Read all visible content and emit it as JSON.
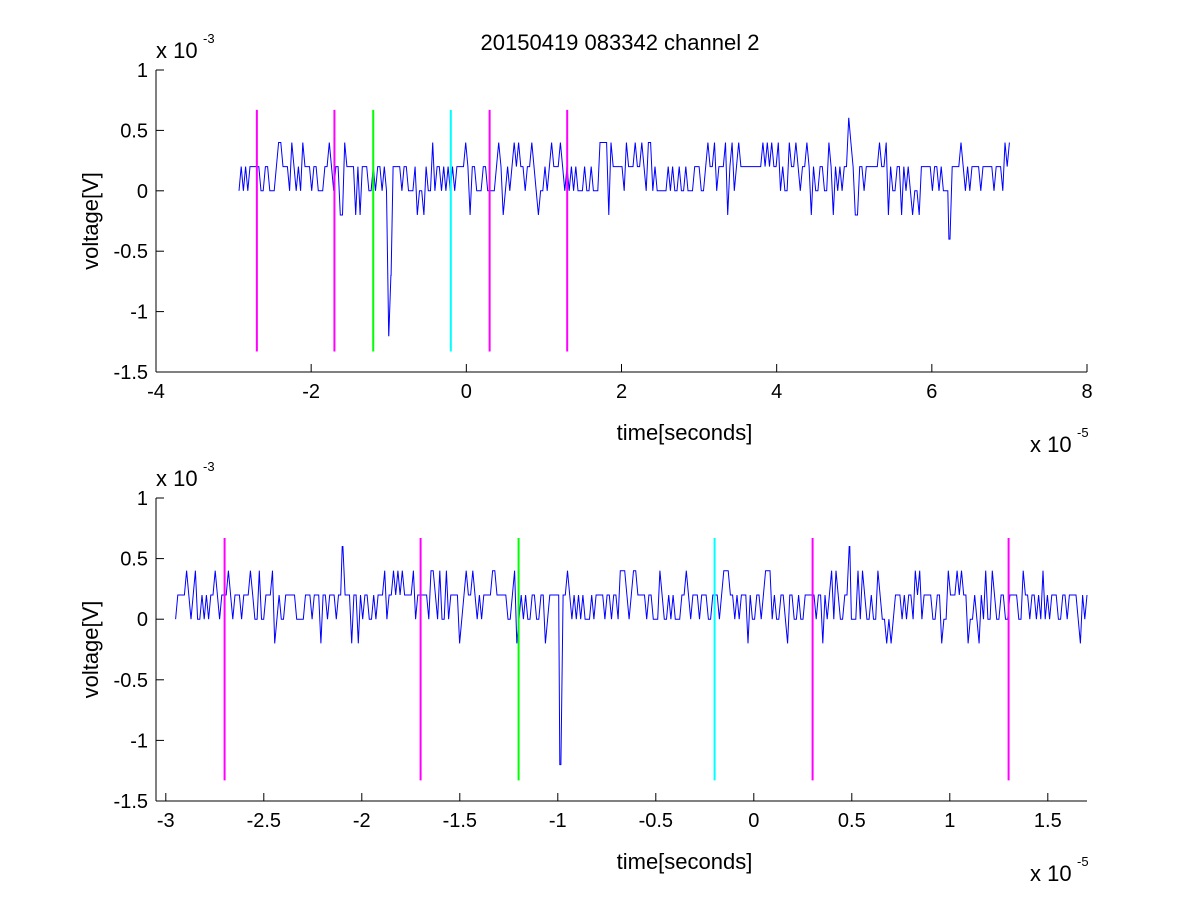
{
  "title": "20150419 083342 channel 2",
  "chart_data": [
    {
      "type": "line",
      "xlabel": "time[seconds]",
      "ylabel": "voltage[V]",
      "x_exponent_label": "x 10",
      "x_exponent": "-5",
      "y_exponent_label": "x 10",
      "y_exponent": "-3",
      "xlim": [
        -4,
        8
      ],
      "ylim": [
        -1.5,
        1
      ],
      "x_ticks": [
        -4,
        -2,
        0,
        2,
        4,
        6,
        8
      ],
      "x_tick_labels": [
        "-4",
        "-2",
        "0",
        "2",
        "4",
        "6",
        "8"
      ],
      "y_ticks": [
        1,
        0.5,
        0,
        -0.5,
        -1,
        -1.5
      ],
      "y_tick_labels": [
        "1",
        "0.5",
        "0",
        "-0.5",
        "-1",
        "-1.5"
      ],
      "grid": false,
      "signal": {
        "color": "#0000ff",
        "x_range": [
          -2.93,
          7.0
        ],
        "baseline": 0.2,
        "noise_levels": [
          0,
          0.2,
          0.4
        ],
        "spikes": [
          {
            "x": -1.0,
            "y": -1.2
          },
          {
            "x": -0.97,
            "y": -0.7
          },
          {
            "x": 6.22,
            "y": -0.4
          },
          {
            "x": 4.93,
            "y": 0.6
          }
        ]
      },
      "markers": [
        {
          "x": -2.7,
          "y0": -1.33,
          "y1": 0.67,
          "color": "#ff00ff"
        },
        {
          "x": -1.7,
          "y0": -1.33,
          "y1": 0.67,
          "color": "#ff00ff"
        },
        {
          "x": -1.2,
          "y0": -1.33,
          "y1": 0.67,
          "color": "#00ff00"
        },
        {
          "x": -0.2,
          "y0": -1.33,
          "y1": 0.67,
          "color": "#00ffff"
        },
        {
          "x": 0.3,
          "y0": -1.33,
          "y1": 0.67,
          "color": "#ff00ff"
        },
        {
          "x": 1.3,
          "y0": -1.33,
          "y1": 0.67,
          "color": "#ff00ff"
        }
      ]
    },
    {
      "type": "line",
      "xlabel": "time[seconds]",
      "ylabel": "voltage[V]",
      "x_exponent_label": "x 10",
      "x_exponent": "-5",
      "y_exponent_label": "x 10",
      "y_exponent": "-3",
      "xlim": [
        -3.05,
        1.7
      ],
      "ylim": [
        -1.5,
        1
      ],
      "x_ticks": [
        -3,
        -2.5,
        -2,
        -1.5,
        -1,
        -0.5,
        0,
        0.5,
        1,
        1.5
      ],
      "x_tick_labels": [
        "-3",
        "-2.5",
        "-2",
        "-1.5",
        "-1",
        "-0.5",
        "0",
        "0.5",
        "1",
        "1.5"
      ],
      "y_ticks": [
        1,
        0.5,
        0,
        -0.5,
        -1,
        -1.5
      ],
      "y_tick_labels": [
        "1",
        "0.5",
        "0",
        "-0.5",
        "-1",
        "-1.5"
      ],
      "grid": false,
      "signal": {
        "color": "#0000ff",
        "x_range": [
          -2.95,
          1.7
        ],
        "baseline": 0.2,
        "noise_levels": [
          0,
          0.2,
          0.4
        ],
        "spikes": [
          {
            "x": -0.99,
            "y": -1.2
          },
          {
            "x": -2.1,
            "y": 0.6
          },
          {
            "x": 0.49,
            "y": 0.6
          }
        ]
      },
      "markers": [
        {
          "x": -2.7,
          "y0": -1.33,
          "y1": 0.67,
          "color": "#ff00ff"
        },
        {
          "x": -1.7,
          "y0": -1.33,
          "y1": 0.67,
          "color": "#ff00ff"
        },
        {
          "x": -1.2,
          "y0": -1.33,
          "y1": 0.67,
          "color": "#00ff00"
        },
        {
          "x": -0.2,
          "y0": -1.33,
          "y1": 0.67,
          "color": "#00ffff"
        },
        {
          "x": 0.3,
          "y0": -1.33,
          "y1": 0.67,
          "color": "#ff00ff"
        },
        {
          "x": 1.3,
          "y0": -1.33,
          "y1": 0.67,
          "color": "#ff00ff"
        }
      ]
    }
  ]
}
